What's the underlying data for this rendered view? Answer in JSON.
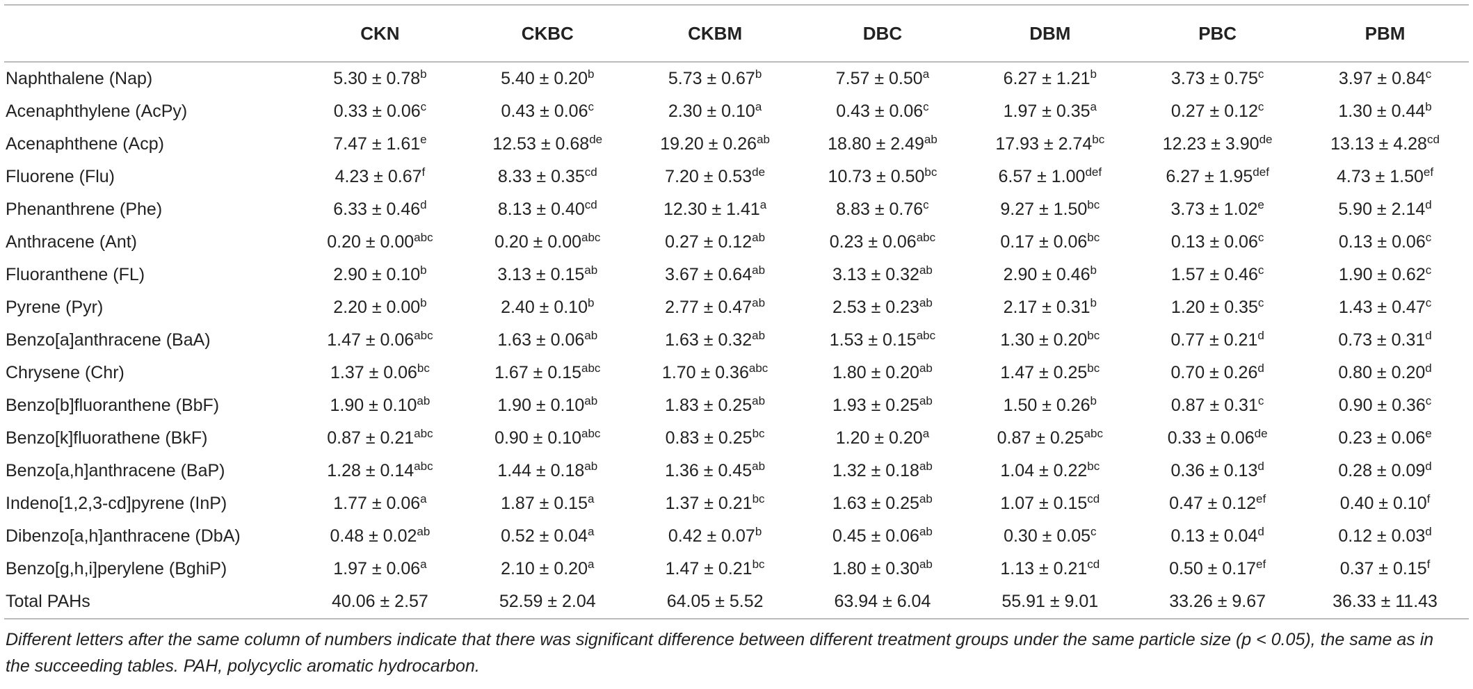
{
  "table": {
    "columns": [
      "CKN",
      "CKBC",
      "CKBM",
      "DBC",
      "DBM",
      "PBC",
      "PBM"
    ],
    "rows": [
      {
        "label": "Naphthalene (Nap)",
        "cells": [
          [
            "5.30 ± 0.78",
            "b"
          ],
          [
            "5.40 ± 0.20",
            "b"
          ],
          [
            "5.73 ± 0.67",
            "b"
          ],
          [
            "7.57 ± 0.50",
            "a"
          ],
          [
            "6.27 ± 1.21",
            "b"
          ],
          [
            "3.73 ± 0.75",
            "c"
          ],
          [
            "3.97 ± 0.84",
            "c"
          ]
        ]
      },
      {
        "label": "Acenaphthylene (AcPy)",
        "cells": [
          [
            "0.33 ± 0.06",
            "c"
          ],
          [
            "0.43 ± 0.06",
            "c"
          ],
          [
            "2.30 ± 0.10",
            "a"
          ],
          [
            "0.43 ± 0.06",
            "c"
          ],
          [
            "1.97 ± 0.35",
            "a"
          ],
          [
            "0.27 ± 0.12",
            "c"
          ],
          [
            "1.30 ± 0.44",
            "b"
          ]
        ]
      },
      {
        "label": "Acenaphthene (Acp)",
        "cells": [
          [
            "7.47 ± 1.61",
            "e"
          ],
          [
            "12.53 ± 0.68",
            "de"
          ],
          [
            "19.20 ± 0.26",
            "ab"
          ],
          [
            "18.80 ± 2.49",
            "ab"
          ],
          [
            "17.93 ± 2.74",
            "bc"
          ],
          [
            "12.23 ± 3.90",
            "de"
          ],
          [
            "13.13 ± 4.28",
            "cd"
          ]
        ]
      },
      {
        "label": "Fluorene (Flu)",
        "cells": [
          [
            "4.23 ± 0.67",
            "f"
          ],
          [
            "8.33 ± 0.35",
            "cd"
          ],
          [
            "7.20 ± 0.53",
            "de"
          ],
          [
            "10.73 ± 0.50",
            "bc"
          ],
          [
            "6.57 ± 1.00",
            "def"
          ],
          [
            "6.27 ± 1.95",
            "def"
          ],
          [
            "4.73 ± 1.50",
            "ef"
          ]
        ]
      },
      {
        "label": "Phenanthrene (Phe)",
        "cells": [
          [
            "6.33 ± 0.46",
            "d"
          ],
          [
            "8.13 ± 0.40",
            "cd"
          ],
          [
            "12.30 ± 1.41",
            "a"
          ],
          [
            "8.83 ± 0.76",
            "c"
          ],
          [
            "9.27 ± 1.50",
            "bc"
          ],
          [
            "3.73 ± 1.02",
            "e"
          ],
          [
            "5.90 ± 2.14",
            "d"
          ]
        ]
      },
      {
        "label": "Anthracene (Ant)",
        "cells": [
          [
            "0.20 ± 0.00",
            "abc"
          ],
          [
            "0.20 ± 0.00",
            "abc"
          ],
          [
            "0.27 ± 0.12",
            "ab"
          ],
          [
            "0.23 ± 0.06",
            "abc"
          ],
          [
            "0.17 ± 0.06",
            "bc"
          ],
          [
            "0.13 ± 0.06",
            "c"
          ],
          [
            "0.13 ± 0.06",
            "c"
          ]
        ]
      },
      {
        "label": "Fluoranthene (FL)",
        "cells": [
          [
            "2.90 ± 0.10",
            "b"
          ],
          [
            "3.13 ± 0.15",
            "ab"
          ],
          [
            "3.67 ± 0.64",
            "ab"
          ],
          [
            "3.13 ± 0.32",
            "ab"
          ],
          [
            "2.90 ± 0.46",
            "b"
          ],
          [
            "1.57 ± 0.46",
            "c"
          ],
          [
            "1.90 ± 0.62",
            "c"
          ]
        ]
      },
      {
        "label": "Pyrene (Pyr)",
        "cells": [
          [
            "2.20 ± 0.00",
            "b"
          ],
          [
            "2.40 ± 0.10",
            "b"
          ],
          [
            "2.77 ± 0.47",
            "ab"
          ],
          [
            "2.53 ± 0.23",
            "ab"
          ],
          [
            "2.17 ± 0.31",
            "b"
          ],
          [
            "1.20 ± 0.35",
            "c"
          ],
          [
            "1.43 ± 0.47",
            "c"
          ]
        ]
      },
      {
        "label": "Benzo[a]anthracene (BaA)",
        "cells": [
          [
            "1.47 ± 0.06",
            "abc"
          ],
          [
            "1.63 ± 0.06",
            "ab"
          ],
          [
            "1.63 ± 0.32",
            "ab"
          ],
          [
            "1.53 ± 0.15",
            "abc"
          ],
          [
            "1.30 ± 0.20",
            "bc"
          ],
          [
            "0.77 ± 0.21",
            "d"
          ],
          [
            "0.73 ± 0.31",
            "d"
          ]
        ]
      },
      {
        "label": "Chrysene (Chr)",
        "cells": [
          [
            "1.37 ± 0.06",
            "bc"
          ],
          [
            "1.67 ± 0.15",
            "abc"
          ],
          [
            "1.70 ± 0.36",
            "abc"
          ],
          [
            "1.80 ± 0.20",
            "ab"
          ],
          [
            "1.47 ± 0.25",
            "bc"
          ],
          [
            "0.70 ± 0.26",
            "d"
          ],
          [
            "0.80 ± 0.20",
            "d"
          ]
        ]
      },
      {
        "label": "Benzo[b]fluoranthene (BbF)",
        "cells": [
          [
            "1.90 ± 0.10",
            "ab"
          ],
          [
            "1.90 ± 0.10",
            "ab"
          ],
          [
            "1.83 ± 0.25",
            "ab"
          ],
          [
            "1.93 ± 0.25",
            "ab"
          ],
          [
            "1.50 ± 0.26",
            "b"
          ],
          [
            "0.87 ± 0.31",
            "c"
          ],
          [
            "0.90 ± 0.36",
            "c"
          ]
        ]
      },
      {
        "label": "Benzo[k]fluorathene (BkF)",
        "cells": [
          [
            "0.87 ± 0.21",
            "abc"
          ],
          [
            "0.90 ± 0.10",
            "abc"
          ],
          [
            "0.83 ± 0.25",
            "bc"
          ],
          [
            "1.20 ± 0.20",
            "a"
          ],
          [
            "0.87 ± 0.25",
            "abc"
          ],
          [
            "0.33 ± 0.06",
            "de"
          ],
          [
            "0.23 ± 0.06",
            "e"
          ]
        ]
      },
      {
        "label": "Benzo[a,h]anthracene (BaP)",
        "cells": [
          [
            "1.28 ± 0.14",
            "abc"
          ],
          [
            "1.44 ± 0.18",
            "ab"
          ],
          [
            "1.36 ± 0.45",
            "ab"
          ],
          [
            "1.32 ± 0.18",
            "ab"
          ],
          [
            "1.04 ± 0.22",
            "bc"
          ],
          [
            "0.36 ± 0.13",
            "d"
          ],
          [
            "0.28 ± 0.09",
            "d"
          ]
        ]
      },
      {
        "label": "Indeno[1,2,3-cd]pyrene (InP)",
        "cells": [
          [
            "1.77 ± 0.06",
            "a"
          ],
          [
            "1.87 ± 0.15",
            "a"
          ],
          [
            "1.37 ± 0.21",
            "bc"
          ],
          [
            "1.63 ± 0.25",
            "ab"
          ],
          [
            "1.07 ± 0.15",
            "cd"
          ],
          [
            "0.47 ± 0.12",
            "ef"
          ],
          [
            "0.40 ± 0.10",
            "f"
          ]
        ]
      },
      {
        "label": "Dibenzo[a,h]anthracene (DbA)",
        "cells": [
          [
            "0.48 ± 0.02",
            "ab"
          ],
          [
            "0.52 ± 0.04",
            "a"
          ],
          [
            "0.42 ± 0.07",
            "b"
          ],
          [
            "0.45 ± 0.06",
            "ab"
          ],
          [
            "0.30 ± 0.05",
            "c"
          ],
          [
            "0.13 ± 0.04",
            "d"
          ],
          [
            "0.12 ± 0.03",
            "d"
          ]
        ]
      },
      {
        "label": "Benzo[g,h,i]perylene (BghiP)",
        "cells": [
          [
            "1.97 ± 0.06",
            "a"
          ],
          [
            "2.10 ± 0.20",
            "a"
          ],
          [
            "1.47 ± 0.21",
            "bc"
          ],
          [
            "1.80 ± 0.30",
            "ab"
          ],
          [
            "1.13 ± 0.21",
            "cd"
          ],
          [
            "0.50 ± 0.17",
            "ef"
          ],
          [
            "0.37 ± 0.15",
            "f"
          ]
        ]
      },
      {
        "label": "Total PAHs",
        "cells": [
          [
            "40.06 ± 2.57"
          ],
          [
            "52.59 ± 2.04"
          ],
          [
            "64.05 ± 5.52"
          ],
          [
            "63.94 ± 6.04"
          ],
          [
            "55.91 ± 9.01"
          ],
          [
            "33.26 ± 9.67"
          ],
          [
            "36.33 ± 11.43"
          ]
        ]
      }
    ]
  },
  "footnote": "Different letters after the same column of numbers indicate that there was significant difference between different treatment groups under the same particle size (p < 0.05), the same as in the succeeding tables. PAH, polycyclic aromatic hydrocarbon."
}
